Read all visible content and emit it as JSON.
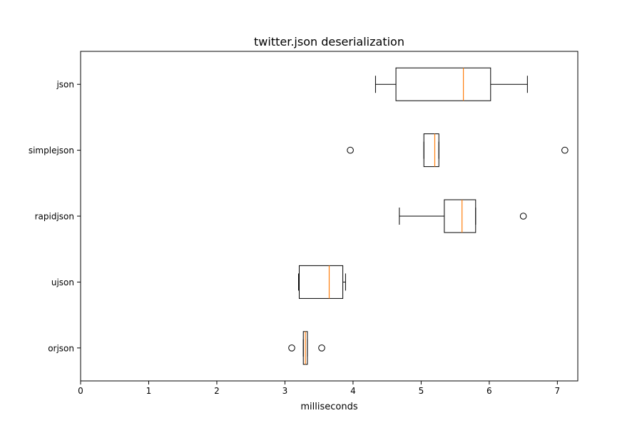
{
  "chart_data": {
    "type": "boxplot",
    "orientation": "horizontal",
    "title": "twitter.json deserialization",
    "xlabel": "milliseconds",
    "ylabel": "",
    "xlim": [
      0,
      7.3
    ],
    "xticks": [
      "0",
      "1",
      "2",
      "3",
      "4",
      "5",
      "6",
      "7"
    ],
    "grid": false,
    "legend": "none",
    "colors": {
      "box": "#000000",
      "median": "#ff7f0e",
      "flier": "#000000"
    },
    "series": [
      {
        "category": "json",
        "whisker_low": 4.33,
        "q1": 4.63,
        "median": 5.62,
        "q3": 6.02,
        "whisker_high": 6.56,
        "outliers": []
      },
      {
        "category": "simplejson",
        "whisker_low": 5.04,
        "q1": 5.04,
        "median": 5.2,
        "q3": 5.26,
        "whisker_high": 5.26,
        "outliers": [
          3.96,
          7.11
        ]
      },
      {
        "category": "rapidjson",
        "whisker_low": 4.68,
        "q1": 5.34,
        "median": 5.6,
        "q3": 5.8,
        "whisker_high": 5.8,
        "outliers": [
          6.5
        ]
      },
      {
        "category": "ujson",
        "whisker_low": 3.2,
        "q1": 3.21,
        "median": 3.65,
        "q3": 3.85,
        "whisker_high": 3.89,
        "outliers": []
      },
      {
        "category": "orjson",
        "whisker_low": 3.27,
        "q1": 3.27,
        "median": 3.3,
        "q3": 3.33,
        "whisker_high": 3.33,
        "outliers": [
          3.1,
          3.54
        ]
      }
    ]
  }
}
